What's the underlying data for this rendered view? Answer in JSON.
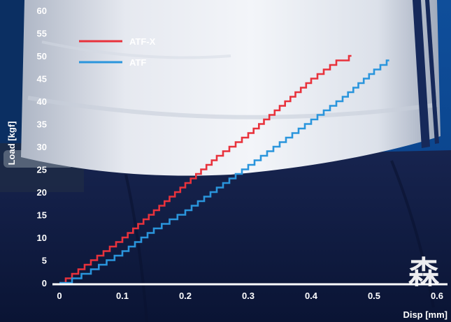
{
  "chart_data": {
    "type": "line",
    "step": true,
    "xlabel": "Disp [mm]",
    "ylabel": "Load [kgf]",
    "xlim": [
      0,
      0.6
    ],
    "ylim": [
      0,
      60
    ],
    "xticks": [
      "0",
      "0.1",
      "0.2",
      "0.3",
      "0.4",
      "0.5",
      "0.6"
    ],
    "yticks": [
      "0",
      "5",
      "10",
      "15",
      "20",
      "25",
      "30",
      "35",
      "40",
      "45",
      "50",
      "55",
      "60"
    ],
    "grid": false,
    "legend_position": "top-left",
    "series": [
      {
        "name": "ATF-X",
        "color": "#e8323c",
        "x": [
          0.0,
          0.02,
          0.05,
          0.1,
          0.15,
          0.2,
          0.25,
          0.3,
          0.35,
          0.4,
          0.44,
          0.46
        ],
        "y": [
          0,
          2,
          5,
          10,
          16,
          22,
          28,
          33,
          39,
          45,
          49,
          50
        ]
      },
      {
        "name": "ATF",
        "color": "#2a95dc",
        "x": [
          0.0,
          0.02,
          0.05,
          0.1,
          0.15,
          0.2,
          0.25,
          0.3,
          0.35,
          0.4,
          0.45,
          0.5,
          0.52
        ],
        "y": [
          0,
          1,
          3,
          7,
          12,
          16,
          21,
          26,
          31,
          36,
          41,
          47,
          49
        ]
      }
    ]
  },
  "watermark_text": "森"
}
